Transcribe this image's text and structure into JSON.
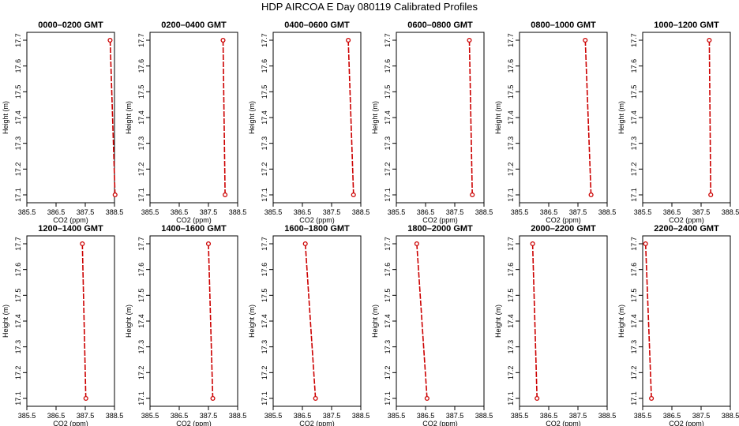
{
  "figure": {
    "title": "HDP  AIRCOA E  Day 080119  Calibrated Profiles"
  },
  "chart_data": [
    {
      "type": "line",
      "title": "0000–0200 GMT",
      "xlabel": "CO2 (ppm)",
      "ylabel": "Height (m)",
      "xlim": [
        385.5,
        388.5
      ],
      "ylim": [
        17.1,
        17.7
      ],
      "xticks": [
        "385.5",
        "386.5",
        "387.5",
        "388.5"
      ],
      "yticks": [
        "17.1",
        "17.2",
        "17.3",
        "17.4",
        "17.5",
        "17.6",
        "17.7"
      ],
      "x": [
        388.35,
        388.52
      ],
      "y": [
        17.7,
        17.1
      ],
      "color": "#cc0000"
    },
    {
      "type": "line",
      "title": "0200–0400 GMT",
      "xlabel": "CO2 (ppm)",
      "ylabel": "Height (m)",
      "xlim": [
        385.5,
        388.5
      ],
      "ylim": [
        17.1,
        17.7
      ],
      "xticks": [
        "385.5",
        "386.5",
        "387.5",
        "388.5"
      ],
      "yticks": [
        "17.1",
        "17.2",
        "17.3",
        "17.4",
        "17.5",
        "17.6",
        "17.7"
      ],
      "x": [
        388.0,
        388.07
      ],
      "y": [
        17.7,
        17.1
      ],
      "color": "#cc0000"
    },
    {
      "type": "line",
      "title": "0400–0600 GMT",
      "xlabel": "CO2 (ppm)",
      "ylabel": "Height (m)",
      "xlim": [
        385.5,
        388.5
      ],
      "ylim": [
        17.1,
        17.7
      ],
      "xticks": [
        "385.5",
        "386.5",
        "387.5",
        "388.5"
      ],
      "yticks": [
        "17.1",
        "17.2",
        "17.3",
        "17.4",
        "17.5",
        "17.6",
        "17.7"
      ],
      "x": [
        388.07,
        388.25
      ],
      "y": [
        17.7,
        17.1
      ],
      "color": "#cc0000"
    },
    {
      "type": "line",
      "title": "0600–0800 GMT",
      "xlabel": "CO2 (ppm)",
      "ylabel": "Height (m)",
      "xlim": [
        385.5,
        388.5
      ],
      "ylim": [
        17.1,
        17.7
      ],
      "xticks": [
        "385.5",
        "386.5",
        "387.5",
        "388.5"
      ],
      "yticks": [
        "17.1",
        "17.2",
        "17.3",
        "17.4",
        "17.5",
        "17.6",
        "17.7"
      ],
      "x": [
        388.0,
        388.1
      ],
      "y": [
        17.7,
        17.1
      ],
      "color": "#cc0000"
    },
    {
      "type": "line",
      "title": "0800–1000 GMT",
      "xlabel": "CO2 (ppm)",
      "ylabel": "Height (m)",
      "xlim": [
        385.5,
        388.5
      ],
      "ylim": [
        17.1,
        17.7
      ],
      "xticks": [
        "385.5",
        "386.5",
        "387.5",
        "388.5"
      ],
      "yticks": [
        "17.1",
        "17.2",
        "17.3",
        "17.4",
        "17.5",
        "17.6",
        "17.7"
      ],
      "x": [
        387.75,
        387.95
      ],
      "y": [
        17.7,
        17.1
      ],
      "color": "#cc0000"
    },
    {
      "type": "line",
      "title": "1000–1200 GMT",
      "xlabel": "CO2 (ppm)",
      "ylabel": "Height (m)",
      "xlim": [
        385.5,
        388.5
      ],
      "ylim": [
        17.1,
        17.7
      ],
      "xticks": [
        "385.5",
        "386.5",
        "387.5",
        "388.5"
      ],
      "yticks": [
        "17.1",
        "17.2",
        "17.3",
        "17.4",
        "17.5",
        "17.6",
        "17.7"
      ],
      "x": [
        387.78,
        387.83
      ],
      "y": [
        17.7,
        17.1
      ],
      "color": "#cc0000"
    },
    {
      "type": "line",
      "title": "1200–1400 GMT",
      "xlabel": "CO2 (ppm)",
      "ylabel": "Height (m)",
      "xlim": [
        385.5,
        388.5
      ],
      "ylim": [
        17.1,
        17.7
      ],
      "xticks": [
        "385.5",
        "386.5",
        "387.5",
        "388.5"
      ],
      "yticks": [
        "17.1",
        "17.2",
        "17.3",
        "17.4",
        "17.5",
        "17.6",
        "17.7"
      ],
      "x": [
        387.4,
        387.52
      ],
      "y": [
        17.7,
        17.1
      ],
      "color": "#cc0000"
    },
    {
      "type": "line",
      "title": "1400–1600 GMT",
      "xlabel": "CO2 (ppm)",
      "ylabel": "Height (m)",
      "xlim": [
        385.5,
        388.5
      ],
      "ylim": [
        17.1,
        17.7
      ],
      "xticks": [
        "385.5",
        "386.5",
        "387.5",
        "388.5"
      ],
      "yticks": [
        "17.1",
        "17.2",
        "17.3",
        "17.4",
        "17.5",
        "17.6",
        "17.7"
      ],
      "x": [
        387.5,
        387.65
      ],
      "y": [
        17.7,
        17.1
      ],
      "color": "#cc0000"
    },
    {
      "type": "line",
      "title": "1600–1800 GMT",
      "xlabel": "CO2 (ppm)",
      "ylabel": "Height (m)",
      "xlim": [
        385.5,
        388.5
      ],
      "ylim": [
        17.1,
        17.7
      ],
      "xticks": [
        "385.5",
        "386.5",
        "387.5",
        "388.5"
      ],
      "yticks": [
        "17.1",
        "17.2",
        "17.3",
        "17.4",
        "17.5",
        "17.6",
        "17.7"
      ],
      "x": [
        386.6,
        386.95
      ],
      "y": [
        17.7,
        17.1
      ],
      "color": "#cc0000"
    },
    {
      "type": "line",
      "title": "1800–2000 GMT",
      "xlabel": "CO2 (ppm)",
      "ylabel": "Height (m)",
      "xlim": [
        385.5,
        388.5
      ],
      "ylim": [
        17.1,
        17.7
      ],
      "xticks": [
        "385.5",
        "386.5",
        "387.5",
        "388.5"
      ],
      "yticks": [
        "17.1",
        "17.2",
        "17.3",
        "17.4",
        "17.5",
        "17.6",
        "17.7"
      ],
      "x": [
        386.2,
        386.55
      ],
      "y": [
        17.7,
        17.1
      ],
      "color": "#cc0000"
    },
    {
      "type": "line",
      "title": "2000–2200 GMT",
      "xlabel": "CO2 (ppm)",
      "ylabel": "Height (m)",
      "xlim": [
        385.5,
        388.5
      ],
      "ylim": [
        17.1,
        17.7
      ],
      "xticks": [
        "385.5",
        "386.5",
        "387.5",
        "388.5"
      ],
      "yticks": [
        "17.1",
        "17.2",
        "17.3",
        "17.4",
        "17.5",
        "17.6",
        "17.7"
      ],
      "x": [
        385.95,
        386.1
      ],
      "y": [
        17.7,
        17.1
      ],
      "color": "#cc0000"
    },
    {
      "type": "line",
      "title": "2200–2400 GMT",
      "xlabel": "CO2 (ppm)",
      "ylabel": "Height (m)",
      "xlim": [
        385.5,
        388.5
      ],
      "ylim": [
        17.1,
        17.7
      ],
      "xticks": [
        "385.5",
        "386.5",
        "387.5",
        "388.5"
      ],
      "yticks": [
        "17.1",
        "17.2",
        "17.3",
        "17.4",
        "17.5",
        "17.6",
        "17.7"
      ],
      "x": [
        385.6,
        385.8
      ],
      "y": [
        17.7,
        17.1
      ],
      "color": "#cc0000"
    }
  ]
}
